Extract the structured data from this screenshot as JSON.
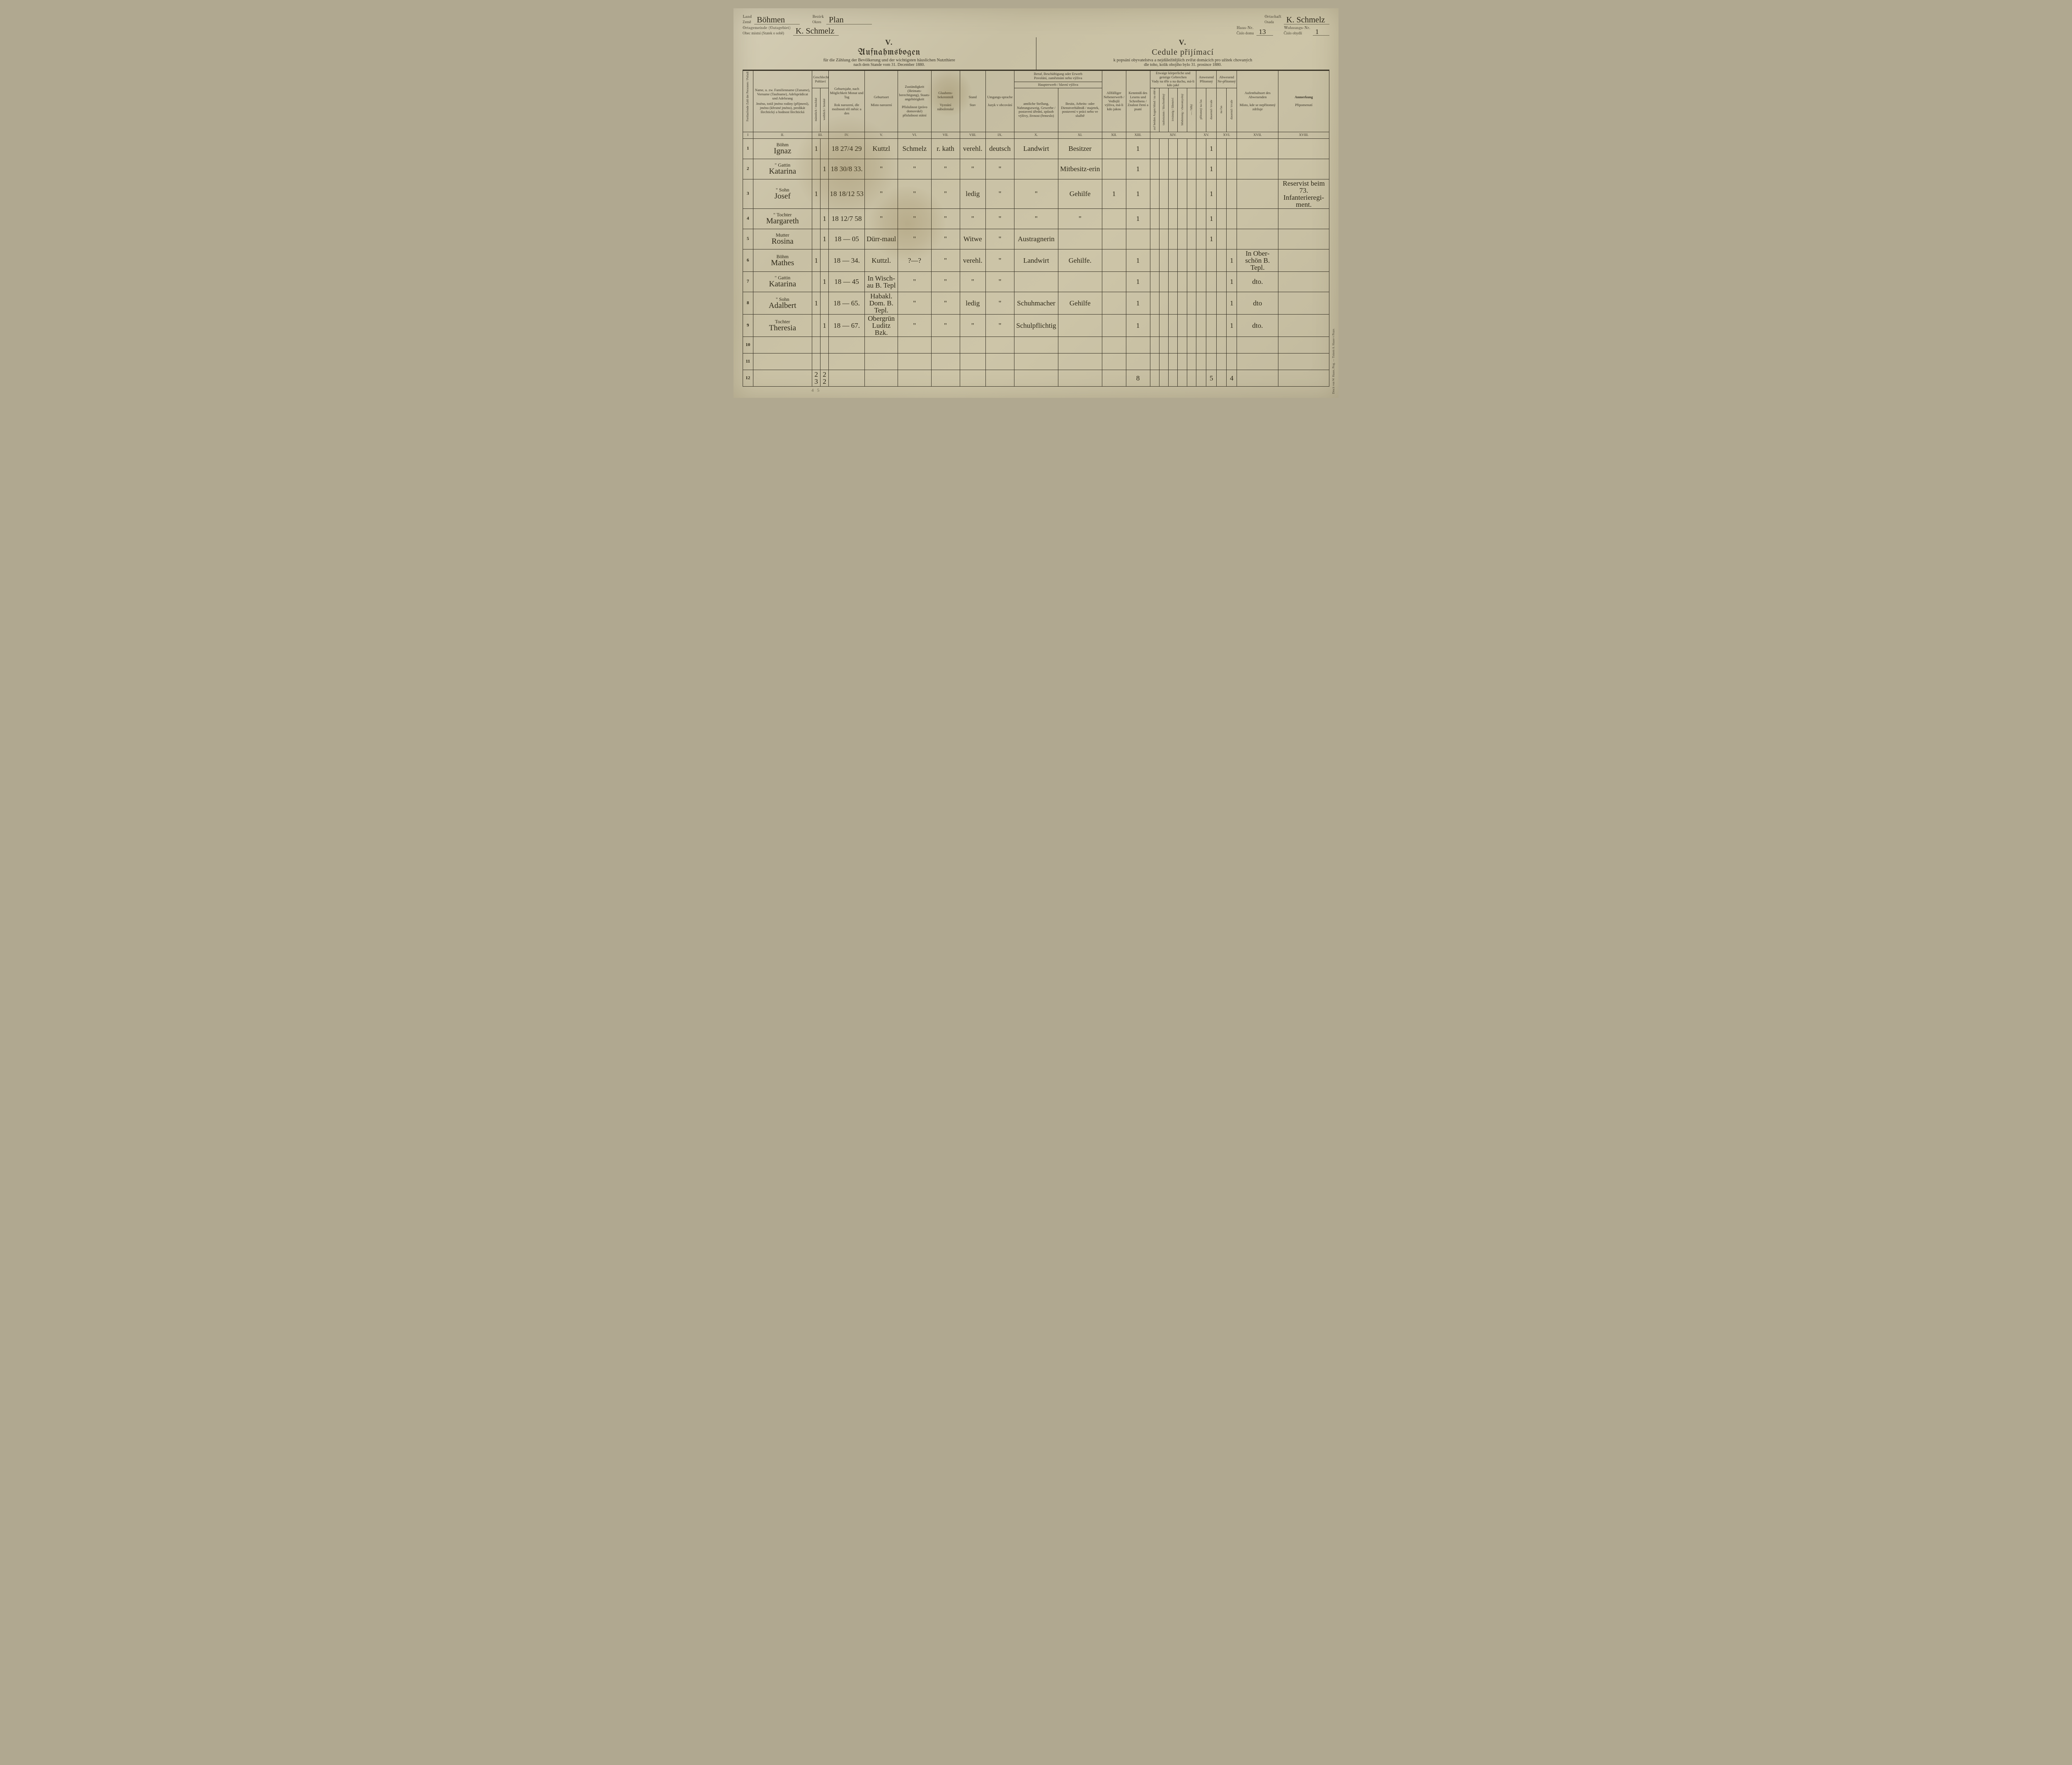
{
  "header": {
    "land_label_de": "Land",
    "land_label_cz": "Země",
    "land_value": "Böhmen",
    "bezirk_label_de": "Bezirk",
    "bezirk_label_cz": "Okres",
    "bezirk_value": "Plan",
    "gemeinde_label_de": "Ortsgemeinde (Gutsgebiet)",
    "gemeinde_label_cz": "Obec místní (Statek o sobě)",
    "gemeinde_value": "K. Schmelz",
    "ortschaft_label_de": "Ortschaft",
    "ortschaft_label_cz": "Osada",
    "ortschaft_value": "K. Schmelz",
    "haus_label_de": "Haus-Nr.",
    "haus_label_cz": "Číslo domu",
    "haus_value": "13",
    "wohnung_label_de": "Wohnungs-Nr.",
    "wohnung_label_cz": "Číslo obydlí",
    "wohnung_value": "1"
  },
  "titles": {
    "roman": "V.",
    "de_title": "Aufnahmsbogen",
    "de_sub": "für die Zählung der Bevölkerung und der wichtigsten häuslichen Nutzthiere",
    "de_date": "nach dem Stande vom 31. December 1880.",
    "cz_title": "Cedule přijímací",
    "cz_sub": "k popsání obyvatelstva a nejdůležitějších zvířat domácích pro užitek chovaných",
    "cz_date": "dle toho, kolik obojího bylo 31. prosince 1880."
  },
  "columns": {
    "c1": "Fortlaufende Zahl der Personen / Pořadí jednotlivých osob",
    "c2_de": "Name, u. zw. Familienname (Zuname), Vorname (Taufname), Adelsprädicat und Adelsrang",
    "c2_cz": "Jméno, totiž jméno rodiny (příjmení), jméno (křestné jméno), predikát šlechtický a hodnost šlechtická",
    "c3_de": "Geschlecht",
    "c3_cz": "Pohlaví",
    "c3a": "männlich / mužské",
    "c3b": "weiblich / ženské",
    "c4_de": "Geburtsjahr, nach Möglichkeit Monat und Tag",
    "c4_cz": "Rok narození, dle možnosti též měsíc a den",
    "c5_de": "Geburtsort",
    "c5_cz": "Místo narození",
    "c6_de": "Zuständigkeit (Heimats-berechtigung), Staats-angehörigkeit",
    "c6_cz": "Příslušnost (právo domovské) příslušnost státní",
    "c7_de": "Glaubens-bekenntniß",
    "c7_cz": "Vyznání náboženské",
    "c8_de": "Stand",
    "c8_cz": "Stav",
    "c9_de": "Umgangs-sprache",
    "c9_cz": "Jazyk v obcování",
    "c10_11_top_de": "Beruf, Beschäftigung oder Erwerb",
    "c10_11_top_cz": "Povolání, zaměstnání nebo výživa",
    "c10_11_mid_de": "Haupterwerb",
    "c10_11_mid_cz": "hlavní výživa",
    "c10_de": "amtliche Stellung, Nahrungszweig, Gewerbe / postavení úřední, způsob výživy, živnost (řemeslo)",
    "c11_de": "Besitz, Arbeits- oder Dienstverhältniß / majetek, postavení v práci nebo ve službě",
    "c12_de": "Allfälliger Nebenerwerb / Vedlejší výživa, má-li kdo jakou",
    "c13_de": "Kenntniß des Lesens und Schreibens / Znalost čtení a psaní",
    "c14_top_de": "Etwaige körperliche und geistige Gebrechen",
    "c14_top_cz": "Vady na těle a na duchu, má-li kdo jaké",
    "c15_de": "Anwesend",
    "c15_cz": "Přítomný",
    "c16_de": "Abwesend",
    "c16_cz": "Ne-přítomný",
    "c17_de": "Aufenthaltsort des Abwesenden",
    "c17_cz": "Místo, kde se nepřítomný zdržuje",
    "c18_de": "Anmerkung",
    "c18_cz": "Připomenutí",
    "roman": {
      "c1": "I",
      "c2": "II.",
      "c3": "III.",
      "c4": "IV.",
      "c5": "V.",
      "c6": "VI.",
      "c7": "VII.",
      "c8": "VIII.",
      "c9": "IX.",
      "c10": "X.",
      "c11": "XI.",
      "c12": "XII.",
      "c13": "XIII.",
      "c14": "XIV.",
      "c15": "XV.",
      "c16": "XVI.",
      "c17": "XVII.",
      "c18": "XVIII."
    }
  },
  "rows": [
    {
      "n": "1",
      "rel": "Böhm",
      "name": "Ignaz",
      "m": "1",
      "f": "",
      "birth": "18 27/4 29",
      "place": "Kuttzl",
      "zust": "Schmelz",
      "rel7": "r. kath",
      "stand": "verehl.",
      "lang": "deutsch",
      "beruf": "Landwirt",
      "verh": "Besitzer",
      "neb": "",
      "les": "1",
      "geb": "",
      "anw": "1",
      "abw": "",
      "ort": "",
      "anm": ""
    },
    {
      "n": "2",
      "rel": "\" Gattin",
      "name": "Katarina",
      "m": "",
      "f": "1",
      "birth": "18 30/8 33.",
      "place": "\"",
      "zust": "\"",
      "rel7": "\"",
      "stand": "\"",
      "lang": "\"",
      "beruf": "",
      "verh": "Mitbesitz-erin",
      "neb": "",
      "les": "1",
      "geb": "",
      "anw": "1",
      "abw": "",
      "ort": "",
      "anm": ""
    },
    {
      "n": "3",
      "rel": "\" Sohn",
      "name": "Josef",
      "m": "1",
      "f": "",
      "birth": "18 18/12 53",
      "place": "\"",
      "zust": "\"",
      "rel7": "\"",
      "stand": "ledig",
      "lang": "\"",
      "beruf": "\"",
      "verh": "Gehilfe",
      "neb": "1",
      "les": "1",
      "geb": "",
      "anw": "1",
      "abw": "",
      "ort": "",
      "anm": "Reservist beim 73. Infanterieregi-ment."
    },
    {
      "n": "4",
      "rel": "\" Tochter",
      "name": "Margareth",
      "m": "",
      "f": "1",
      "birth": "18 12/7 58",
      "place": "\"",
      "zust": "\"",
      "rel7": "\"",
      "stand": "\"",
      "lang": "\"",
      "beruf": "\"",
      "verh": "\"",
      "neb": "",
      "les": "1",
      "geb": "",
      "anw": "1",
      "abw": "",
      "ort": "",
      "anm": ""
    },
    {
      "n": "5",
      "rel": "Mutter",
      "name": "Rosina",
      "m": "",
      "f": "1",
      "birth": "18 — 05",
      "place": "Dürr-maul",
      "zust": "\"",
      "rel7": "\"",
      "stand": "Witwe",
      "lang": "\"",
      "beruf": "Austragnerin",
      "verh": "",
      "neb": "",
      "les": "",
      "geb": "",
      "anw": "1",
      "abw": "",
      "ort": "",
      "anm": ""
    },
    {
      "n": "6",
      "rel": "Böhm",
      "name": "Mathes",
      "m": "1",
      "f": "",
      "birth": "18 — 34.",
      "place": "Kuttzl.",
      "zust": "?—?",
      "rel7": "\"",
      "stand": "verehl.",
      "lang": "\"",
      "beruf": "Landwirt",
      "verh": "Gehilfe.",
      "neb": "",
      "les": "1",
      "geb": "",
      "anw": "",
      "abw": "1",
      "ort": "In Ober-schön B. Tepl.",
      "anm": ""
    },
    {
      "n": "7",
      "rel": "\" Gattin",
      "name": "Katarina",
      "m": "",
      "f": "1",
      "birth": "18 — 45",
      "place": "In Wisch-au B. Tepl",
      "zust": "\"",
      "rel7": "\"",
      "stand": "\"",
      "lang": "\"",
      "beruf": "",
      "verh": "",
      "neb": "",
      "les": "1",
      "geb": "",
      "anw": "",
      "abw": "1",
      "ort": "dto.",
      "anm": ""
    },
    {
      "n": "8",
      "rel": "\" Sohn",
      "name": "Adalbert",
      "m": "1",
      "f": "",
      "birth": "18 — 65.",
      "place": "Habakl. Dom. B. Tepl.",
      "zust": "\"",
      "rel7": "\"",
      "stand": "ledig",
      "lang": "\"",
      "beruf": "Schuhmacher",
      "verh": "Gehilfe",
      "neb": "",
      "les": "1",
      "geb": "",
      "anw": "",
      "abw": "1",
      "ort": "dto",
      "anm": ""
    },
    {
      "n": "9",
      "rel": "Tochter",
      "name": "Theresia",
      "m": "",
      "f": "1",
      "birth": "18 — 67.",
      "place": "Obergrün Luditz Bzk.",
      "zust": "\"",
      "rel7": "\"",
      "stand": "\"",
      "lang": "\"",
      "beruf": "Schulpflichtig",
      "verh": "",
      "neb": "",
      "les": "1",
      "geb": "",
      "anw": "",
      "abw": "1",
      "ort": "dto.",
      "anm": ""
    },
    {
      "n": "10",
      "rel": "",
      "name": "",
      "m": "",
      "f": "",
      "birth": "",
      "place": "",
      "zust": "",
      "rel7": "",
      "stand": "",
      "lang": "",
      "beruf": "",
      "verh": "",
      "neb": "",
      "les": "",
      "geb": "",
      "anw": "",
      "abw": "",
      "ort": "",
      "anm": ""
    },
    {
      "n": "11",
      "rel": "",
      "name": "",
      "m": "",
      "f": "",
      "birth": "",
      "place": "",
      "zust": "",
      "rel7": "",
      "stand": "",
      "lang": "",
      "beruf": "",
      "verh": "",
      "neb": "",
      "les": "",
      "geb": "",
      "anw": "",
      "abw": "",
      "ort": "",
      "anm": ""
    },
    {
      "n": "12",
      "rel": "",
      "name": "",
      "m": "2 3",
      "f": "2 2",
      "birth": "",
      "place": "",
      "zust": "",
      "rel7": "",
      "stand": "",
      "lang": "",
      "beruf": "",
      "verh": "",
      "neb": "",
      "les": "8",
      "geb": "",
      "anw": "5",
      "abw": "4",
      "ort": "",
      "anm": ""
    }
  ],
  "tally": {
    "m": "4",
    "f": "5"
  },
  "printer": "Druck von W. Haase, Prag. — Tiskem A. Haase v Praze."
}
